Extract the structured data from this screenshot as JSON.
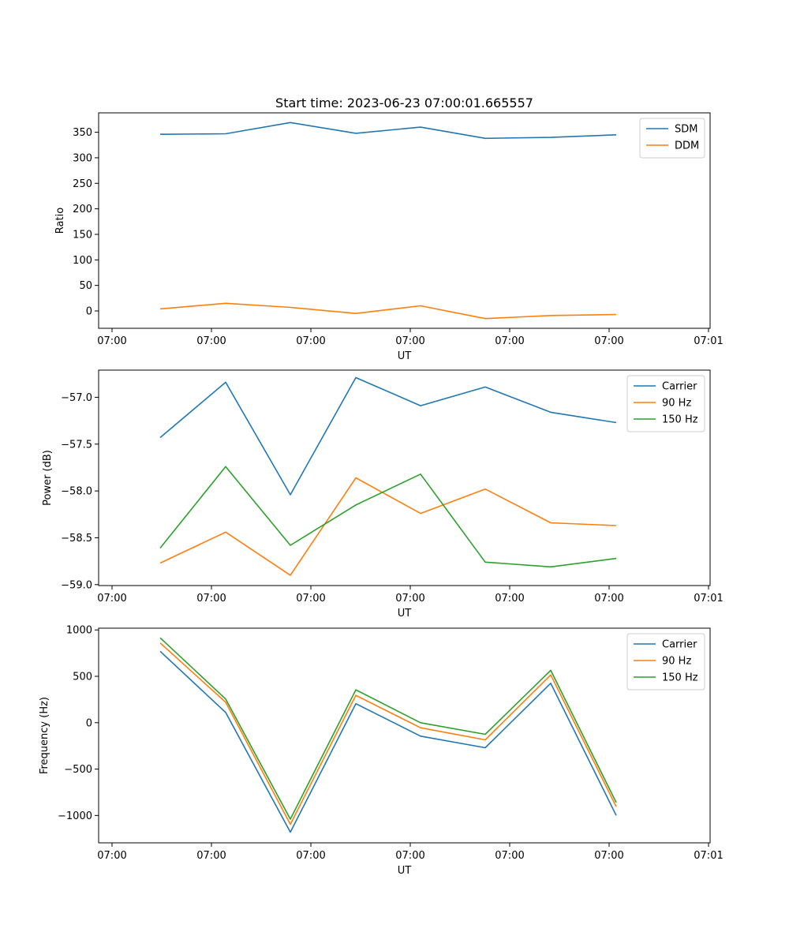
{
  "title": "Start time: 2023-06-23 07:00:01.665557",
  "colors": {
    "blue": "#1f77b4",
    "orange": "#ff7f0e",
    "green": "#2ca02c"
  },
  "chart_data": [
    {
      "type": "line",
      "xlabel": "UT",
      "ylabel": "Ratio",
      "x_tick_labels": [
        "07:00",
        "07:00",
        "07:00",
        "07:00",
        "07:00",
        "07:00",
        "07:00",
        "07:01"
      ],
      "y_ticks": [
        0,
        50,
        100,
        150,
        200,
        250,
        300,
        350
      ],
      "ylim": [
        -34,
        388
      ],
      "legend_position": "top-right",
      "series": [
        {
          "name": "SDM",
          "color": "#1f77b4",
          "values": [
            346,
            347,
            369,
            348,
            360,
            338,
            340,
            345
          ]
        },
        {
          "name": "DDM",
          "color": "#ff7f0e",
          "values": [
            4,
            15,
            7,
            -5,
            10,
            -15,
            -9,
            -7
          ]
        }
      ]
    },
    {
      "type": "line",
      "xlabel": "UT",
      "ylabel": "Power (dB)",
      "x_tick_labels": [
        "07:00",
        "07:00",
        "07:00",
        "07:00",
        "07:00",
        "07:00",
        "07:00",
        "07:01"
      ],
      "y_ticks": [
        -59.0,
        -58.5,
        -58.0,
        -57.5,
        -57.0
      ],
      "y_tick_labels": [
        "−59.0",
        "−58.5",
        "−58.0",
        "−57.5",
        "−57.0"
      ],
      "ylim": [
        -59.01,
        -56.71
      ],
      "legend_position": "top-right",
      "series": [
        {
          "name": "Carrier",
          "color": "#1f77b4",
          "values": [
            -57.43,
            -56.84,
            -58.04,
            -56.79,
            -57.09,
            -56.89,
            -57.16,
            -57.27
          ]
        },
        {
          "name": "90 Hz",
          "color": "#ff7f0e",
          "values": [
            -58.77,
            -58.44,
            -58.9,
            -57.86,
            -58.24,
            -57.98,
            -58.34,
            -58.37
          ]
        },
        {
          "name": "150 Hz",
          "color": "#2ca02c",
          "values": [
            -58.61,
            -57.74,
            -58.58,
            -58.15,
            -57.82,
            -58.76,
            -58.81,
            -58.72
          ]
        }
      ]
    },
    {
      "type": "line",
      "xlabel": "UT",
      "ylabel": "Frequency (Hz)",
      "x_tick_labels": [
        "07:00",
        "07:00",
        "07:00",
        "07:00",
        "07:00",
        "07:00",
        "07:00",
        "07:01"
      ],
      "y_ticks": [
        -1000,
        -500,
        0,
        500,
        1000
      ],
      "y_tick_labels": [
        "−1000",
        "−500",
        "0",
        "500",
        "1000"
      ],
      "ylim": [
        -1295,
        1019
      ],
      "legend_position": "top-right",
      "series": [
        {
          "name": "Carrier",
          "color": "#1f77b4",
          "values": [
            770,
            110,
            -1180,
            205,
            -145,
            -270,
            425,
            -1000
          ]
        },
        {
          "name": "90 Hz",
          "color": "#ff7f0e",
          "values": [
            860,
            220,
            -1095,
            295,
            -55,
            -185,
            515,
            -905
          ]
        },
        {
          "name": "150 Hz",
          "color": "#2ca02c",
          "values": [
            915,
            255,
            -1040,
            355,
            0,
            -125,
            565,
            -860
          ]
        }
      ]
    }
  ]
}
